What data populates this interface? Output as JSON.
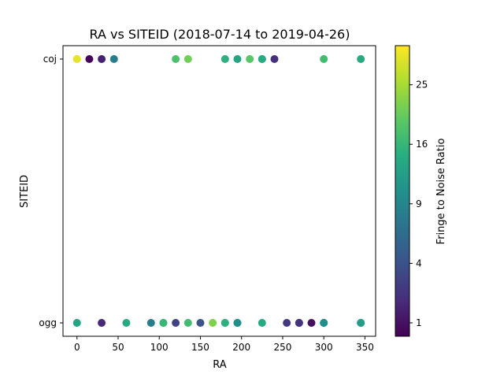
{
  "chart_data": {
    "type": "scatter",
    "title": "RA vs SITEID (2018-07-14 to 2019-04-26)",
    "xlabel": "RA",
    "ylabel": "SITEID",
    "xlim": [
      -17,
      363
    ],
    "x_ticks": [
      0,
      50,
      100,
      150,
      200,
      250,
      300,
      350
    ],
    "y_categories": [
      "ogg",
      "coj"
    ],
    "colorbar": {
      "label": "Fringe to Noise Ratio",
      "colormap": "viridis",
      "scale": "sqrt",
      "range": [
        0.6,
        32
      ],
      "ticks": [
        1,
        4,
        9,
        16,
        25
      ]
    },
    "points": [
      {
        "x": 0,
        "y": "coj",
        "c": 32
      },
      {
        "x": 0,
        "y": "coj",
        "c": 30
      },
      {
        "x": 15,
        "y": "coj",
        "c": 0.7
      },
      {
        "x": 30,
        "y": "coj",
        "c": 1.5
      },
      {
        "x": 45,
        "y": "coj",
        "c": 8
      },
      {
        "x": 120,
        "y": "coj",
        "c": 18
      },
      {
        "x": 135,
        "y": "coj",
        "c": 21
      },
      {
        "x": 180,
        "y": "coj",
        "c": 15
      },
      {
        "x": 195,
        "y": "coj",
        "c": 13
      },
      {
        "x": 210,
        "y": "coj",
        "c": 19
      },
      {
        "x": 225,
        "y": "coj",
        "c": 16
      },
      {
        "x": 225,
        "y": "coj",
        "c": 14
      },
      {
        "x": 240,
        "y": "coj",
        "c": 2
      },
      {
        "x": 300,
        "y": "coj",
        "c": 17
      },
      {
        "x": 345,
        "y": "coj",
        "c": 14
      },
      {
        "x": 0,
        "y": "ogg",
        "c": 13
      },
      {
        "x": 30,
        "y": "ogg",
        "c": 1.8
      },
      {
        "x": 60,
        "y": "ogg",
        "c": 14
      },
      {
        "x": 90,
        "y": "ogg",
        "c": 8
      },
      {
        "x": 105,
        "y": "ogg",
        "c": 18
      },
      {
        "x": 105,
        "y": "ogg",
        "c": 16
      },
      {
        "x": 120,
        "y": "ogg",
        "c": 3
      },
      {
        "x": 135,
        "y": "ogg",
        "c": 17
      },
      {
        "x": 150,
        "y": "ogg",
        "c": 4
      },
      {
        "x": 165,
        "y": "ogg",
        "c": 22
      },
      {
        "x": 180,
        "y": "ogg",
        "c": 17
      },
      {
        "x": 180,
        "y": "ogg",
        "c": 15
      },
      {
        "x": 195,
        "y": "ogg",
        "c": 12
      },
      {
        "x": 195,
        "y": "ogg",
        "c": 10
      },
      {
        "x": 225,
        "y": "ogg",
        "c": 14
      },
      {
        "x": 255,
        "y": "ogg",
        "c": 2.5
      },
      {
        "x": 270,
        "y": "ogg",
        "c": 1.6
      },
      {
        "x": 270,
        "y": "ogg",
        "c": 2.2
      },
      {
        "x": 285,
        "y": "ogg",
        "c": 0.9
      },
      {
        "x": 300,
        "y": "ogg",
        "c": 8
      },
      {
        "x": 300,
        "y": "ogg",
        "c": 10
      },
      {
        "x": 345,
        "y": "ogg",
        "c": 9
      },
      {
        "x": 345,
        "y": "ogg",
        "c": 12
      }
    ]
  }
}
